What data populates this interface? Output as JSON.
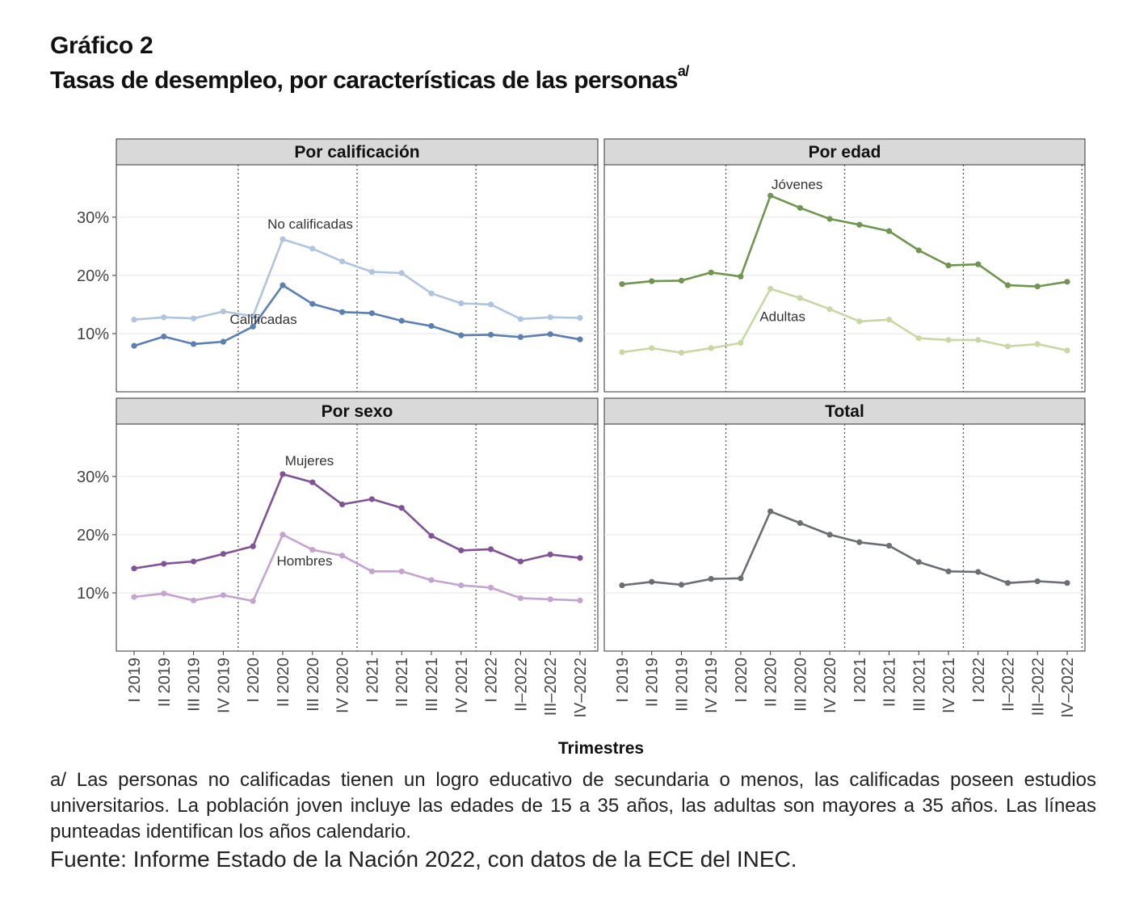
{
  "header": {
    "title": "Gráfico 2",
    "subtitle": "Tasas de desempleo, por características de las personas",
    "subtitle_sup": "a/"
  },
  "chart_data": {
    "type": "line",
    "xlabel": "Trimestres",
    "ylabel": "",
    "ylim": [
      0,
      39
    ],
    "yticks": [
      10,
      20,
      30
    ],
    "ytick_labels": [
      "10%",
      "20%",
      "30%"
    ],
    "year_separators_after_index": [
      3,
      7,
      11,
      15
    ],
    "categories": [
      "I 2019",
      "II 2019",
      "III 2019",
      "IV 2019",
      "I 2020",
      "II 2020",
      "III 2020",
      "IV 2020",
      "I 2021",
      "II 2021",
      "III 2021",
      "IV 2021",
      "I 2022",
      "II–2022",
      "III–2022",
      "IV–2022"
    ],
    "panels": [
      {
        "title": "Por calificación",
        "series": [
          {
            "name": "No calificadas",
            "color": "#b0c4de",
            "values": [
              12.4,
              12.8,
              12.6,
              13.8,
              13.0,
              26.2,
              24.6,
              22.4,
              20.6,
              20.4,
              16.9,
              15.2,
              15.0,
              12.5,
              12.8,
              12.7
            ],
            "label_index": 5
          },
          {
            "name": "Calificadas",
            "color": "#5a7fb0",
            "values": [
              7.9,
              9.5,
              8.2,
              8.6,
              11.2,
              18.3,
              15.1,
              13.7,
              13.5,
              12.2,
              11.3,
              9.7,
              9.8,
              9.4,
              9.9,
              9.0
            ],
            "label_index": 5
          }
        ]
      },
      {
        "title": "Por edad",
        "series": [
          {
            "name": "Jóvenes",
            "color": "#6f9550",
            "values": [
              18.5,
              19.0,
              19.1,
              20.5,
              19.8,
              33.7,
              31.6,
              29.7,
              28.7,
              27.6,
              24.3,
              21.7,
              21.9,
              18.3,
              18.1,
              18.9
            ],
            "label_index": 5
          },
          {
            "name": "Adultas",
            "color": "#c9d7a5",
            "values": [
              6.8,
              7.5,
              6.7,
              7.5,
              8.4,
              17.7,
              16.1,
              14.2,
              12.1,
              12.4,
              9.2,
              8.9,
              8.9,
              7.8,
              8.2,
              7.1
            ],
            "label_index": 5
          }
        ]
      },
      {
        "title": "Por sexo",
        "series": [
          {
            "name": "Mujeres",
            "color": "#7f5394",
            "values": [
              14.2,
              15.0,
              15.4,
              16.7,
              18.0,
              30.4,
              29.0,
              25.2,
              26.1,
              24.6,
              19.8,
              17.3,
              17.5,
              15.4,
              16.6,
              16.0
            ],
            "label_index": 5
          },
          {
            "name": "Hombres",
            "color": "#c3a4ce",
            "values": [
              9.3,
              9.9,
              8.7,
              9.6,
              8.6,
              20.0,
              17.4,
              16.4,
              13.7,
              13.7,
              12.2,
              11.3,
              10.9,
              9.1,
              8.9,
              8.7
            ],
            "label_index": 5
          }
        ]
      },
      {
        "title": "Total",
        "series": [
          {
            "name": "Total",
            "color": "#6b6e72",
            "values": [
              11.3,
              11.9,
              11.4,
              12.4,
              12.5,
              24.0,
              22.0,
              20.0,
              18.7,
              18.1,
              15.3,
              13.7,
              13.6,
              11.7,
              12.0,
              11.7
            ],
            "label_index": null
          }
        ]
      }
    ]
  },
  "footnote": "a/ Las personas no calificadas tienen un logro educativo de secundaria o menos, las calificadas poseen estudios universitarios.  La población joven incluye las edades de 15 a 35 años, las adultas son mayores a 35 años. Las líneas punteadas identifican los años calendario.",
  "source": "Fuente: Informe Estado de la Nación 2022, con datos de la ECE del INEC."
}
